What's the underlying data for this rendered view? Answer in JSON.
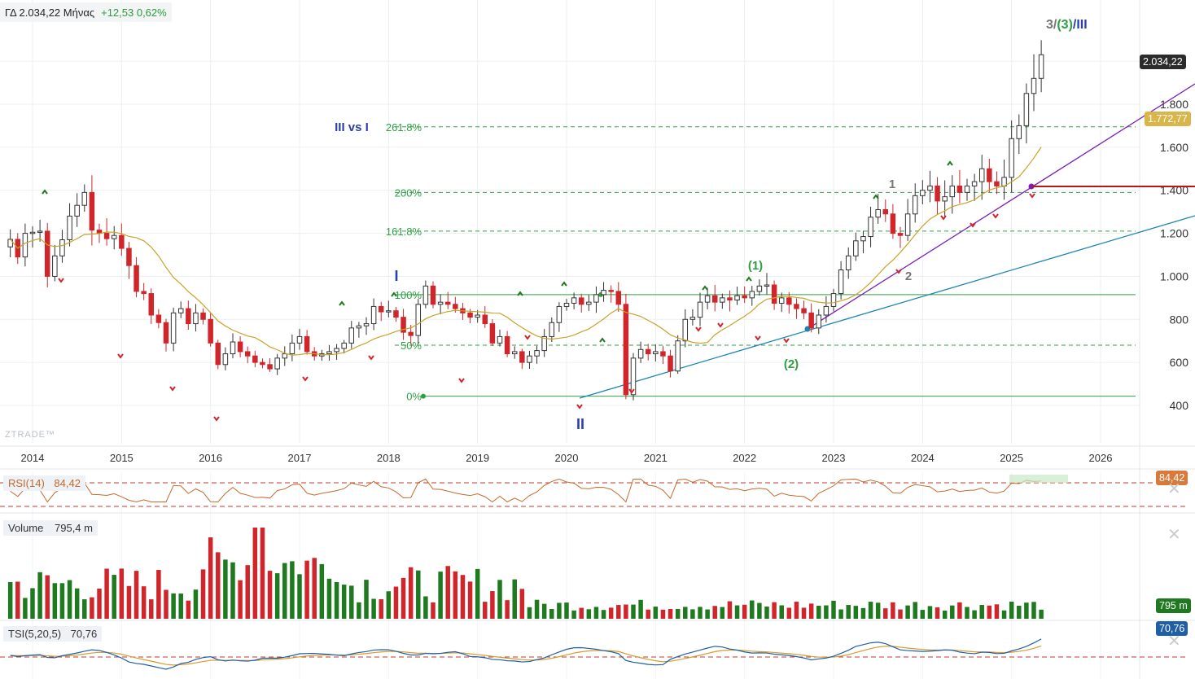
{
  "header": {
    "title": "ΓΔ 2.034,22 Μήνας",
    "change": "+12,53 0,62%"
  },
  "watermark": "ZTRADE™",
  "price_tag_last": "2.034,22",
  "price_tag_ma": "1.772,77",
  "rsi_label": "RSI(14)",
  "rsi_value": "84,42",
  "rsi_tag": "84,42",
  "volume_label": "Volume",
  "volume_value": "795,4 m",
  "volume_tag": "795 m",
  "tsi_label": "TSI(5,20,5)",
  "tsi_value": "70,76",
  "tsi_tag": "70,76",
  "close_icon_glyph": "✕",
  "annotations": {
    "wave_I": "I",
    "wave_II": "II",
    "wave_1": "1",
    "wave_2": "2",
    "wave_p1": "(1)",
    "wave_p2": "(2)",
    "wave_top_a": "3/",
    "wave_top_b": "(3)",
    "wave_top_c": "/III",
    "iii_vs_i": "III vs I"
  },
  "fib_levels": [
    {
      "label": "261.8%",
      "value": 1695
    },
    {
      "label": "200%",
      "value": 1390
    },
    {
      "label": "161.8%",
      "value": 1210
    },
    {
      "label": "100%",
      "value": 915
    },
    {
      "label": "50%",
      "value": 680
    },
    {
      "label": "0%",
      "value": 443
    }
  ],
  "colors": {
    "up": "#1f7a1f",
    "down": "#d0262b",
    "ma": "#c9a227",
    "fib_green": "#2ea043",
    "trend_blue": "#1b84b2",
    "trend_purple": "#7a1fb8",
    "red_level": "#b8161b",
    "tsi_blue": "#1f5fa8",
    "tsi_orange": "#d89a2c",
    "rsi": "#c46a2a",
    "dashed_red": "#c0392b"
  },
  "chart_data": {
    "type": "candlestick",
    "title": "",
    "x_axis_ticks": [
      "2014",
      "2015",
      "2016",
      "2017",
      "2018",
      "2019",
      "2020",
      "2021",
      "2022",
      "2023",
      "2024",
      "2025",
      "2026"
    ],
    "y_axis_ticks": [
      "1.800",
      "1.600",
      "1.400",
      "1.200",
      "1.000",
      "800",
      "600",
      "400"
    ],
    "ylim": [
      300,
      2200
    ],
    "grid": true,
    "last_close": 2034.22,
    "ma_last": 1772.77,
    "monthly_close_approx": [
      1172,
      1090,
      1200,
      1205,
      1210,
      1000,
      1095,
      1170,
      1280,
      1330,
      1390,
      1215,
      1200,
      1175,
      1190,
      1130,
      1050,
      930,
      920,
      820,
      785,
      690,
      830,
      850,
      780,
      830,
      800,
      690,
      590,
      640,
      695,
      650,
      630,
      600,
      590,
      570,
      620,
      640,
      690,
      720,
      650,
      630,
      640,
      650,
      665,
      690,
      760,
      770,
      780,
      860,
      835,
      840,
      810,
      740,
      725,
      870,
      955,
      870,
      880,
      870,
      850,
      830,
      810,
      820,
      780,
      690,
      720,
      640,
      650,
      600,
      630,
      655,
      720,
      785,
      860,
      875,
      900,
      870,
      880,
      915,
      935,
      930,
      870,
      450,
      620,
      660,
      640,
      650,
      630,
      560,
      700,
      800,
      810,
      880,
      910,
      880,
      900,
      890,
      910,
      900,
      930,
      955,
      960,
      875,
      900,
      870,
      850,
      830,
      760,
      820,
      860,
      920,
      1030,
      1095,
      1165,
      1185,
      1275,
      1310,
      1290,
      1200,
      1190,
      1290,
      1375,
      1400,
      1420,
      1350,
      1370,
      1420,
      1390,
      1420,
      1440,
      1500,
      1440,
      1420,
      1460,
      1640,
      1700,
      1850,
      1920,
      2030
    ],
    "rsi": {
      "label": "RSI(14)",
      "last": 84.42,
      "levels": [
        70,
        30
      ]
    },
    "volume": {
      "label": "Volume",
      "last": "795,4 m",
      "unit": "m"
    },
    "tsi": {
      "label": "TSI(5,20,5)",
      "last": 70.76
    }
  }
}
